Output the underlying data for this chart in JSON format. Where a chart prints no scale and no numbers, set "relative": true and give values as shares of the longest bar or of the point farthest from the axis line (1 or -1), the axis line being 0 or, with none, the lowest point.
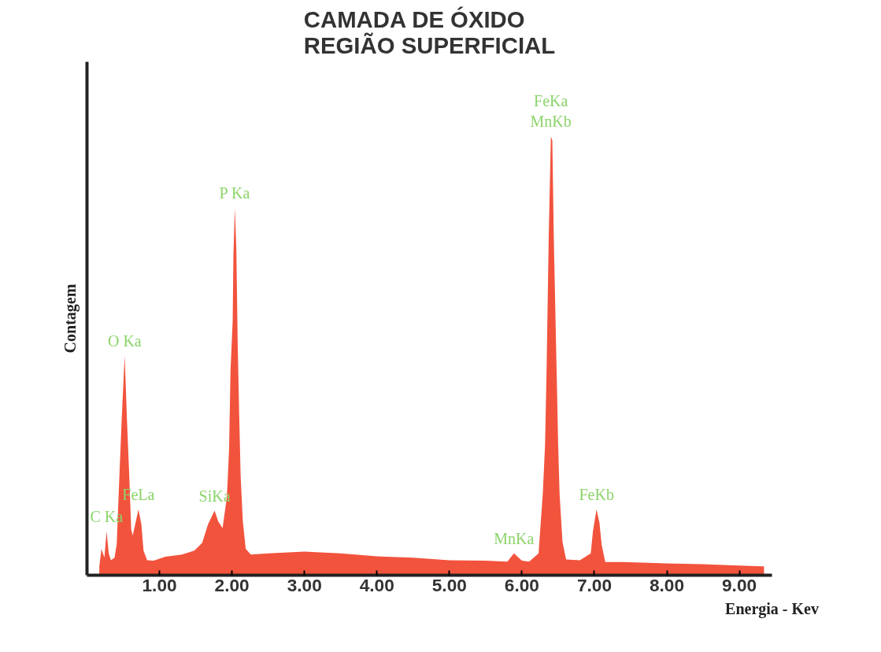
{
  "chart_data": {
    "type": "area",
    "title": "CAMADA DE ÓXIDO\nREGIÃO SUPERFICIAL",
    "xlabel": "Energia - Kev",
    "ylabel": "Contagem",
    "relative": true,
    "x": [
      0.17,
      0.2,
      0.24,
      0.27,
      0.3,
      0.33,
      0.38,
      0.41,
      0.45,
      0.48,
      0.52,
      0.55,
      0.58,
      0.61,
      0.63,
      0.67,
      0.71,
      0.75,
      0.78,
      0.83,
      0.92,
      1.08,
      1.31,
      1.48,
      1.59,
      1.67,
      1.76,
      1.81,
      1.87,
      1.93,
      1.96,
      1.98,
      2.01,
      2.02,
      2.04,
      2.06,
      2.08,
      2.1,
      2.12,
      2.15,
      2.19,
      2.26,
      2.5,
      3.0,
      3.5,
      4.0,
      4.5,
      5.0,
      5.5,
      5.8,
      5.89,
      6.0,
      6.1,
      6.23,
      6.29,
      6.32,
      6.34,
      6.37,
      6.4,
      6.42,
      6.44,
      6.48,
      6.5,
      6.52,
      6.56,
      6.61,
      6.8,
      6.95,
      6.98,
      7.03,
      7.07,
      7.1,
      7.15,
      7.4,
      8.0,
      8.5,
      9.0,
      9.34
    ],
    "series": [
      {
        "color": "#f2533d",
        "values": [
          0.02,
          0.06,
          0.04,
          0.1,
          0.05,
          0.034,
          0.04,
          0.07,
          0.24,
          0.36,
          0.5,
          0.36,
          0.24,
          0.105,
          0.09,
          0.12,
          0.15,
          0.116,
          0.056,
          0.034,
          0.033,
          0.042,
          0.047,
          0.056,
          0.074,
          0.116,
          0.147,
          0.123,
          0.107,
          0.178,
          0.286,
          0.467,
          0.58,
          0.73,
          0.837,
          0.745,
          0.52,
          0.364,
          0.225,
          0.123,
          0.06,
          0.047,
          0.05,
          0.054,
          0.05,
          0.043,
          0.04,
          0.034,
          0.033,
          0.031,
          0.05,
          0.033,
          0.031,
          0.05,
          0.19,
          0.3,
          0.46,
          0.77,
          1.0,
          0.99,
          0.77,
          0.46,
          0.3,
          0.185,
          0.076,
          0.036,
          0.034,
          0.05,
          0.1,
          0.15,
          0.12,
          0.07,
          0.03,
          0.03,
          0.027,
          0.025,
          0.022,
          0.02
        ]
      }
    ],
    "xlim": [
      0,
      9.45
    ],
    "xticks": [
      {
        "value": 1,
        "label": "1.00"
      },
      {
        "value": 2,
        "label": "2.00"
      },
      {
        "value": 3,
        "label": "3.00"
      },
      {
        "value": 4,
        "label": "4.00"
      },
      {
        "value": 5,
        "label": "5.00"
      },
      {
        "value": 6,
        "label": "6.00"
      },
      {
        "value": 7,
        "label": "7.00"
      },
      {
        "value": 8,
        "label": "8.00"
      },
      {
        "value": 9,
        "label": "9.00"
      }
    ],
    "annotations": [
      {
        "text": "C Ka",
        "x": 0.27,
        "y": 0.1
      },
      {
        "text": "O Ka",
        "x": 0.52,
        "y": 0.5
      },
      {
        "text": "FeLa",
        "x": 0.71,
        "y": 0.15
      },
      {
        "text": "SiKa",
        "x": 1.76,
        "y": 0.147
      },
      {
        "text": "P Ka",
        "x": 2.04,
        "y": 0.837
      },
      {
        "text": "MnKa",
        "x": 5.89,
        "y": 0.05
      },
      {
        "text": "FeKa",
        "x": 6.4,
        "y": 1.0
      },
      {
        "text": "MnKb",
        "x": 6.4,
        "y": 1.0
      },
      {
        "text": "FeKb",
        "x": 7.03,
        "y": 0.15
      }
    ]
  }
}
